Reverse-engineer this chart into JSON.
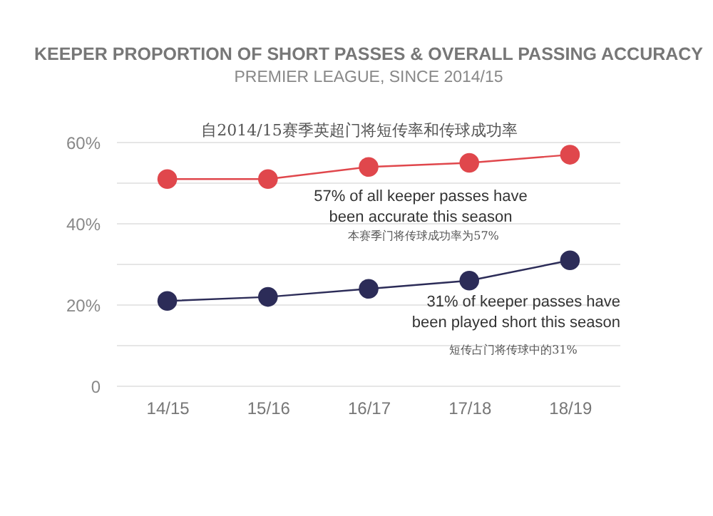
{
  "chart_data": {
    "type": "line",
    "title": "KEEPER PROPORTION OF SHORT PASSES & OVERALL PASSING ACCURACY",
    "subtitle": "PREMIER LEAGUE, SINCE 2014/15",
    "categories": [
      "14/15",
      "15/16",
      "16/17",
      "17/18",
      "18/19"
    ],
    "series": [
      {
        "color": "#e0474c",
        "values": [
          51,
          51,
          54,
          55,
          57
        ]
      },
      {
        "color": "#2c2c58",
        "values": [
          21,
          22,
          24,
          26,
          31
        ]
      }
    ],
    "ylim": [
      0,
      60
    ],
    "yticks": [
      0,
      {
        "value": 10,
        "label": null
      },
      {
        "value": 20,
        "label": "20%"
      },
      {
        "value": 30,
        "label": null
      },
      {
        "value": 40,
        "label": "40%"
      },
      {
        "value": 50,
        "label": null
      },
      {
        "value": 60,
        "label": "60%"
      }
    ],
    "grid": "y",
    "marker": "circle",
    "line_style": "solid",
    "annotations": [
      "自2014/15赛季英超门将短传率和传球成功率",
      "57% of all keeper passes have been accurate this season",
      "本赛季门将传球成功率为57%",
      "31% of keeper passes have been played short this season",
      "短传占门将传球中的31%"
    ]
  }
}
